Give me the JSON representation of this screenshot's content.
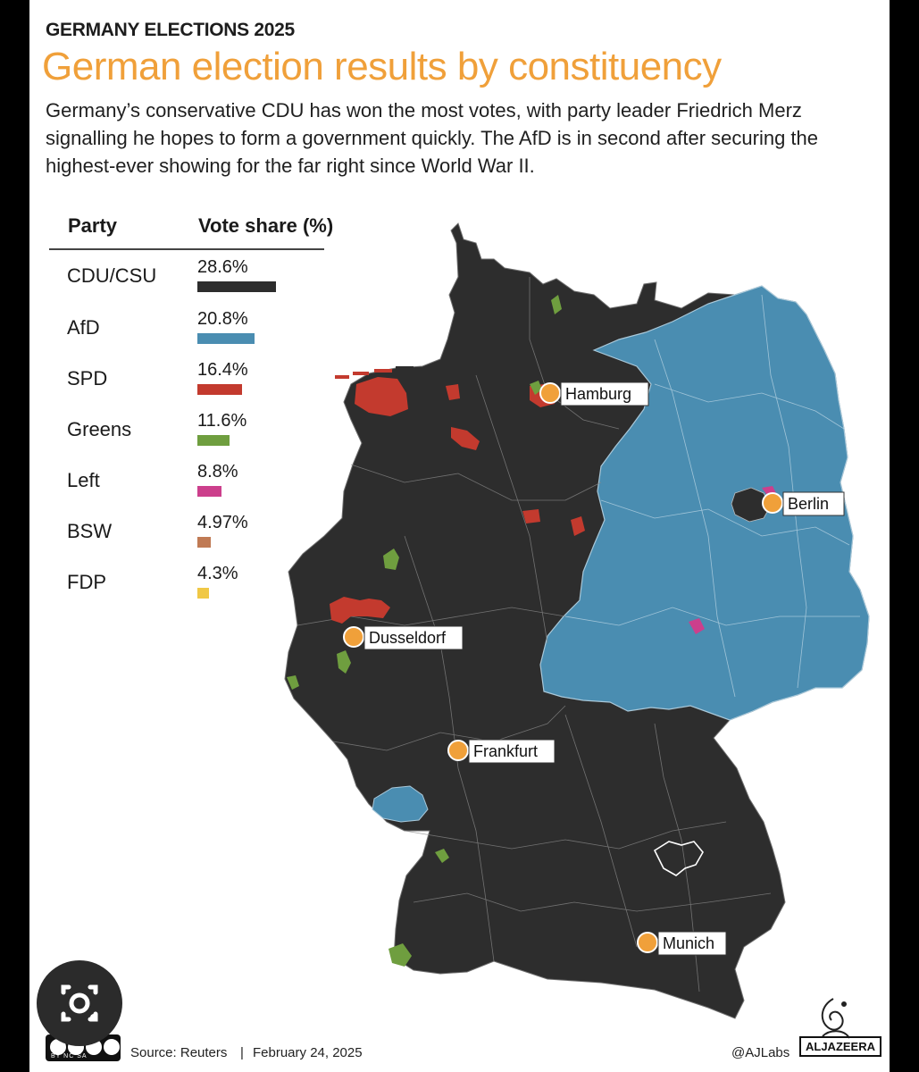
{
  "header": {
    "kicker": "GERMANY ELECTIONS 2025",
    "title": "German election results by constituency",
    "subtitle": "Germany’s conservative CDU has won the most votes, with party leader Friedrich Merz signalling he hopes to form a government quickly. The AfD is in second after securing the highest-ever showing for the far right since World War II."
  },
  "legend": {
    "party_header": "Party",
    "share_header": "Vote share (%)",
    "items": [
      {
        "party": "CDU/CSU",
        "share": "28.6%",
        "value": 28.6,
        "color": "#2d2d2d"
      },
      {
        "party": "AfD",
        "share": "20.8%",
        "value": 20.8,
        "color": "#4a8db1"
      },
      {
        "party": "SPD",
        "share": "16.4%",
        "value": 16.4,
        "color": "#c33a2e"
      },
      {
        "party": "Greens",
        "share": "11.6%",
        "value": 11.6,
        "color": "#6f9e3f"
      },
      {
        "party": "Left",
        "share": "8.8%",
        "value": 8.8,
        "color": "#cc3f8c"
      },
      {
        "party": "BSW",
        "share": "4.97%",
        "value": 4.97,
        "color": "#c07a54"
      },
      {
        "party": "FDP",
        "share": "4.3%",
        "value": 4.3,
        "color": "#f0c846"
      }
    ]
  },
  "cities": [
    {
      "name": "Hamburg"
    },
    {
      "name": "Berlin"
    },
    {
      "name": "Dusseldorf"
    },
    {
      "name": "Frankfurt"
    },
    {
      "name": "Munich"
    }
  ],
  "footer": {
    "source": "Source: Reuters",
    "separator": "|",
    "date": "February 24, 2025",
    "handle": "@AJLabs",
    "brand": "ALJAZEERA",
    "license": "BY  NC  SA",
    "license_icon": "creative-commons-icon"
  },
  "colors": {
    "title": "#f0a03a",
    "marker": "#f0a03a",
    "cdu_region": "#2d2d2d",
    "afd_region": "#4a8db1",
    "border": "#8a8a8a"
  }
}
